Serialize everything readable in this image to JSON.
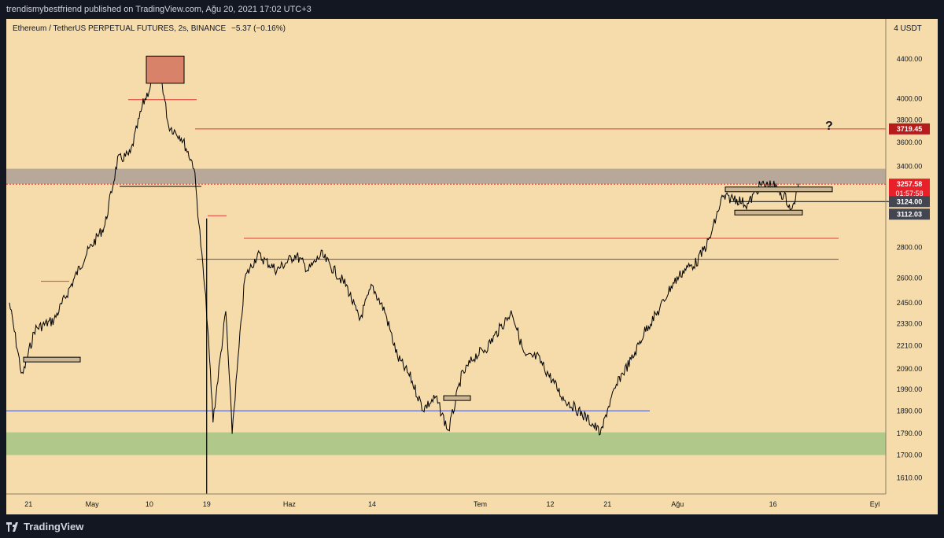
{
  "header": {
    "published": "trendismybestfriend published on TradingView.com, Ağu 20, 2021 17:02 UTC+3"
  },
  "footer": {
    "brand": "TradingView"
  },
  "colors": {
    "background": "#f5dcaa",
    "price_line": "#000000",
    "resistance_line": "#e53935",
    "support_line": "#3f51b5",
    "current_price_badge": "#e8202a",
    "target_badge": "#b71c1c",
    "level_badge": "#434651",
    "grey_zone": "#b8a89a",
    "green_zone": "#b0c98a",
    "peak_box": "#d9826a"
  },
  "chart_data": {
    "type": "line",
    "title": "Ethereum / TetherUS PERPETUAL FUTURES, 2s, BINANCE",
    "change": "−5.37 (−0.16%)",
    "unit_label": "4 USDT",
    "y_scale": "log",
    "ylim": [
      1560,
      4700
    ],
    "y_ticks": [
      "4400.00",
      "4000.00",
      "3800.00",
      "3600.00",
      "3400.00",
      "3124.00",
      "2800.00",
      "2600.00",
      "2450.00",
      "2330.00",
      "2210.00",
      "2090.00",
      "1990.00",
      "1890.00",
      "1790.00",
      "1700.00",
      "1610.00"
    ],
    "x_ticks": [
      "21",
      "May",
      "10",
      "19",
      "Haz",
      "14",
      "Tem",
      "12",
      "21",
      "Ağu",
      "16",
      "Eyl"
    ],
    "x_range": [
      "2021-04-18",
      "2021-09-01"
    ],
    "series": [
      {
        "x": [
          "2021-04-18",
          "2021-04-20",
          "2021-04-22",
          "2021-04-25",
          "2021-04-27",
          "2021-04-30",
          "2021-05-03",
          "2021-05-05",
          "2021-05-07",
          "2021-05-09",
          "2021-05-11",
          "2021-05-12",
          "2021-05-13",
          "2021-05-15",
          "2021-05-17",
          "2021-05-19",
          "2021-05-20",
          "2021-05-22",
          "2021-05-23",
          "2021-05-25",
          "2021-05-27",
          "2021-05-30",
          "2021-06-02",
          "2021-06-04",
          "2021-06-06",
          "2021-06-08",
          "2021-06-10",
          "2021-06-12",
          "2021-06-14",
          "2021-06-16",
          "2021-06-18",
          "2021-06-20",
          "2021-06-22",
          "2021-06-24",
          "2021-06-26",
          "2021-06-28",
          "2021-06-30",
          "2021-07-02",
          "2021-07-04",
          "2021-07-06",
          "2021-07-08",
          "2021-07-10",
          "2021-07-12",
          "2021-07-14",
          "2021-07-16",
          "2021-07-18",
          "2021-07-20",
          "2021-07-21",
          "2021-07-23",
          "2021-07-25",
          "2021-07-27",
          "2021-07-29",
          "2021-07-31",
          "2021-08-02",
          "2021-08-04",
          "2021-08-06",
          "2021-08-08",
          "2021-08-10",
          "2021-08-12",
          "2021-08-14",
          "2021-08-16",
          "2021-08-18",
          "2021-08-19",
          "2021-08-20"
        ],
        "y": [
          2450,
          2050,
          2300,
          2350,
          2500,
          2750,
          2950,
          3450,
          3500,
          3950,
          4250,
          4150,
          3750,
          3650,
          3400,
          2400,
          1850,
          2400,
          1800,
          2600,
          2750,
          2650,
          2750,
          2650,
          2750,
          2650,
          2550,
          2350,
          2550,
          2400,
          2150,
          2050,
          1900,
          1950,
          1800,
          2050,
          2150,
          2200,
          2300,
          2400,
          2150,
          2150,
          2050,
          1950,
          1900,
          1850,
          1790,
          1900,
          2050,
          2150,
          2300,
          2400,
          2550,
          2650,
          2700,
          2850,
          3150,
          3150,
          3100,
          3250,
          3250,
          3150,
          3050,
          3260
        ]
      }
    ],
    "current_price": {
      "value": "3257.58",
      "countdown": "01:57:58"
    },
    "levels": [
      {
        "value": "3719.45",
        "kind": "resistance"
      },
      {
        "value": "3124.00",
        "kind": "support"
      },
      {
        "value": "3112.03",
        "kind": "support"
      }
    ],
    "zones": [
      {
        "label": "resistance zone",
        "low": 3260,
        "high": 3380
      },
      {
        "label": "demand zone",
        "low": 1700,
        "high": 1795
      }
    ],
    "annotations": [
      {
        "text": "?"
      }
    ],
    "grid": false
  }
}
